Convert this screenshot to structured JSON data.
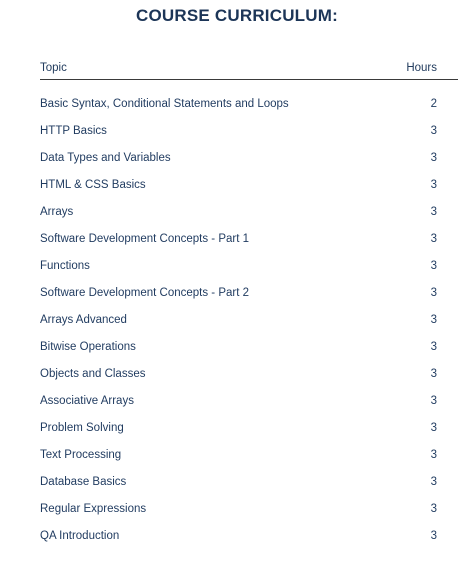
{
  "title": "COURSE CURRICULUM:",
  "header": {
    "topic": "Topic",
    "hours": "Hours"
  },
  "rows": [
    {
      "topic": "Basic Syntax, Conditional Statements and Loops",
      "hours": "2"
    },
    {
      "topic": "HTTP Basics",
      "hours": "3"
    },
    {
      "topic": "Data Types and Variables",
      "hours": "3"
    },
    {
      "topic": "HTML & CSS Basics",
      "hours": "3"
    },
    {
      "topic": "Arrays",
      "hours": "3"
    },
    {
      "topic": "Software Development Concepts - Part 1",
      "hours": "3"
    },
    {
      "topic": "Functions",
      "hours": "3"
    },
    {
      "topic": "Software Development Concepts - Part 2",
      "hours": "3"
    },
    {
      "topic": "Arrays Advanced",
      "hours": "3"
    },
    {
      "topic": "Bitwise Operations",
      "hours": "3"
    },
    {
      "topic": "Objects and Classes",
      "hours": "3"
    },
    {
      "topic": "Associative Arrays",
      "hours": "3"
    },
    {
      "topic": "Problem Solving",
      "hours": "3"
    },
    {
      "topic": "Text Processing",
      "hours": "3"
    },
    {
      "topic": "Database Basics",
      "hours": "3"
    },
    {
      "topic": "Regular Expressions",
      "hours": "3"
    },
    {
      "topic": "QA Introduction",
      "hours": "3"
    }
  ]
}
